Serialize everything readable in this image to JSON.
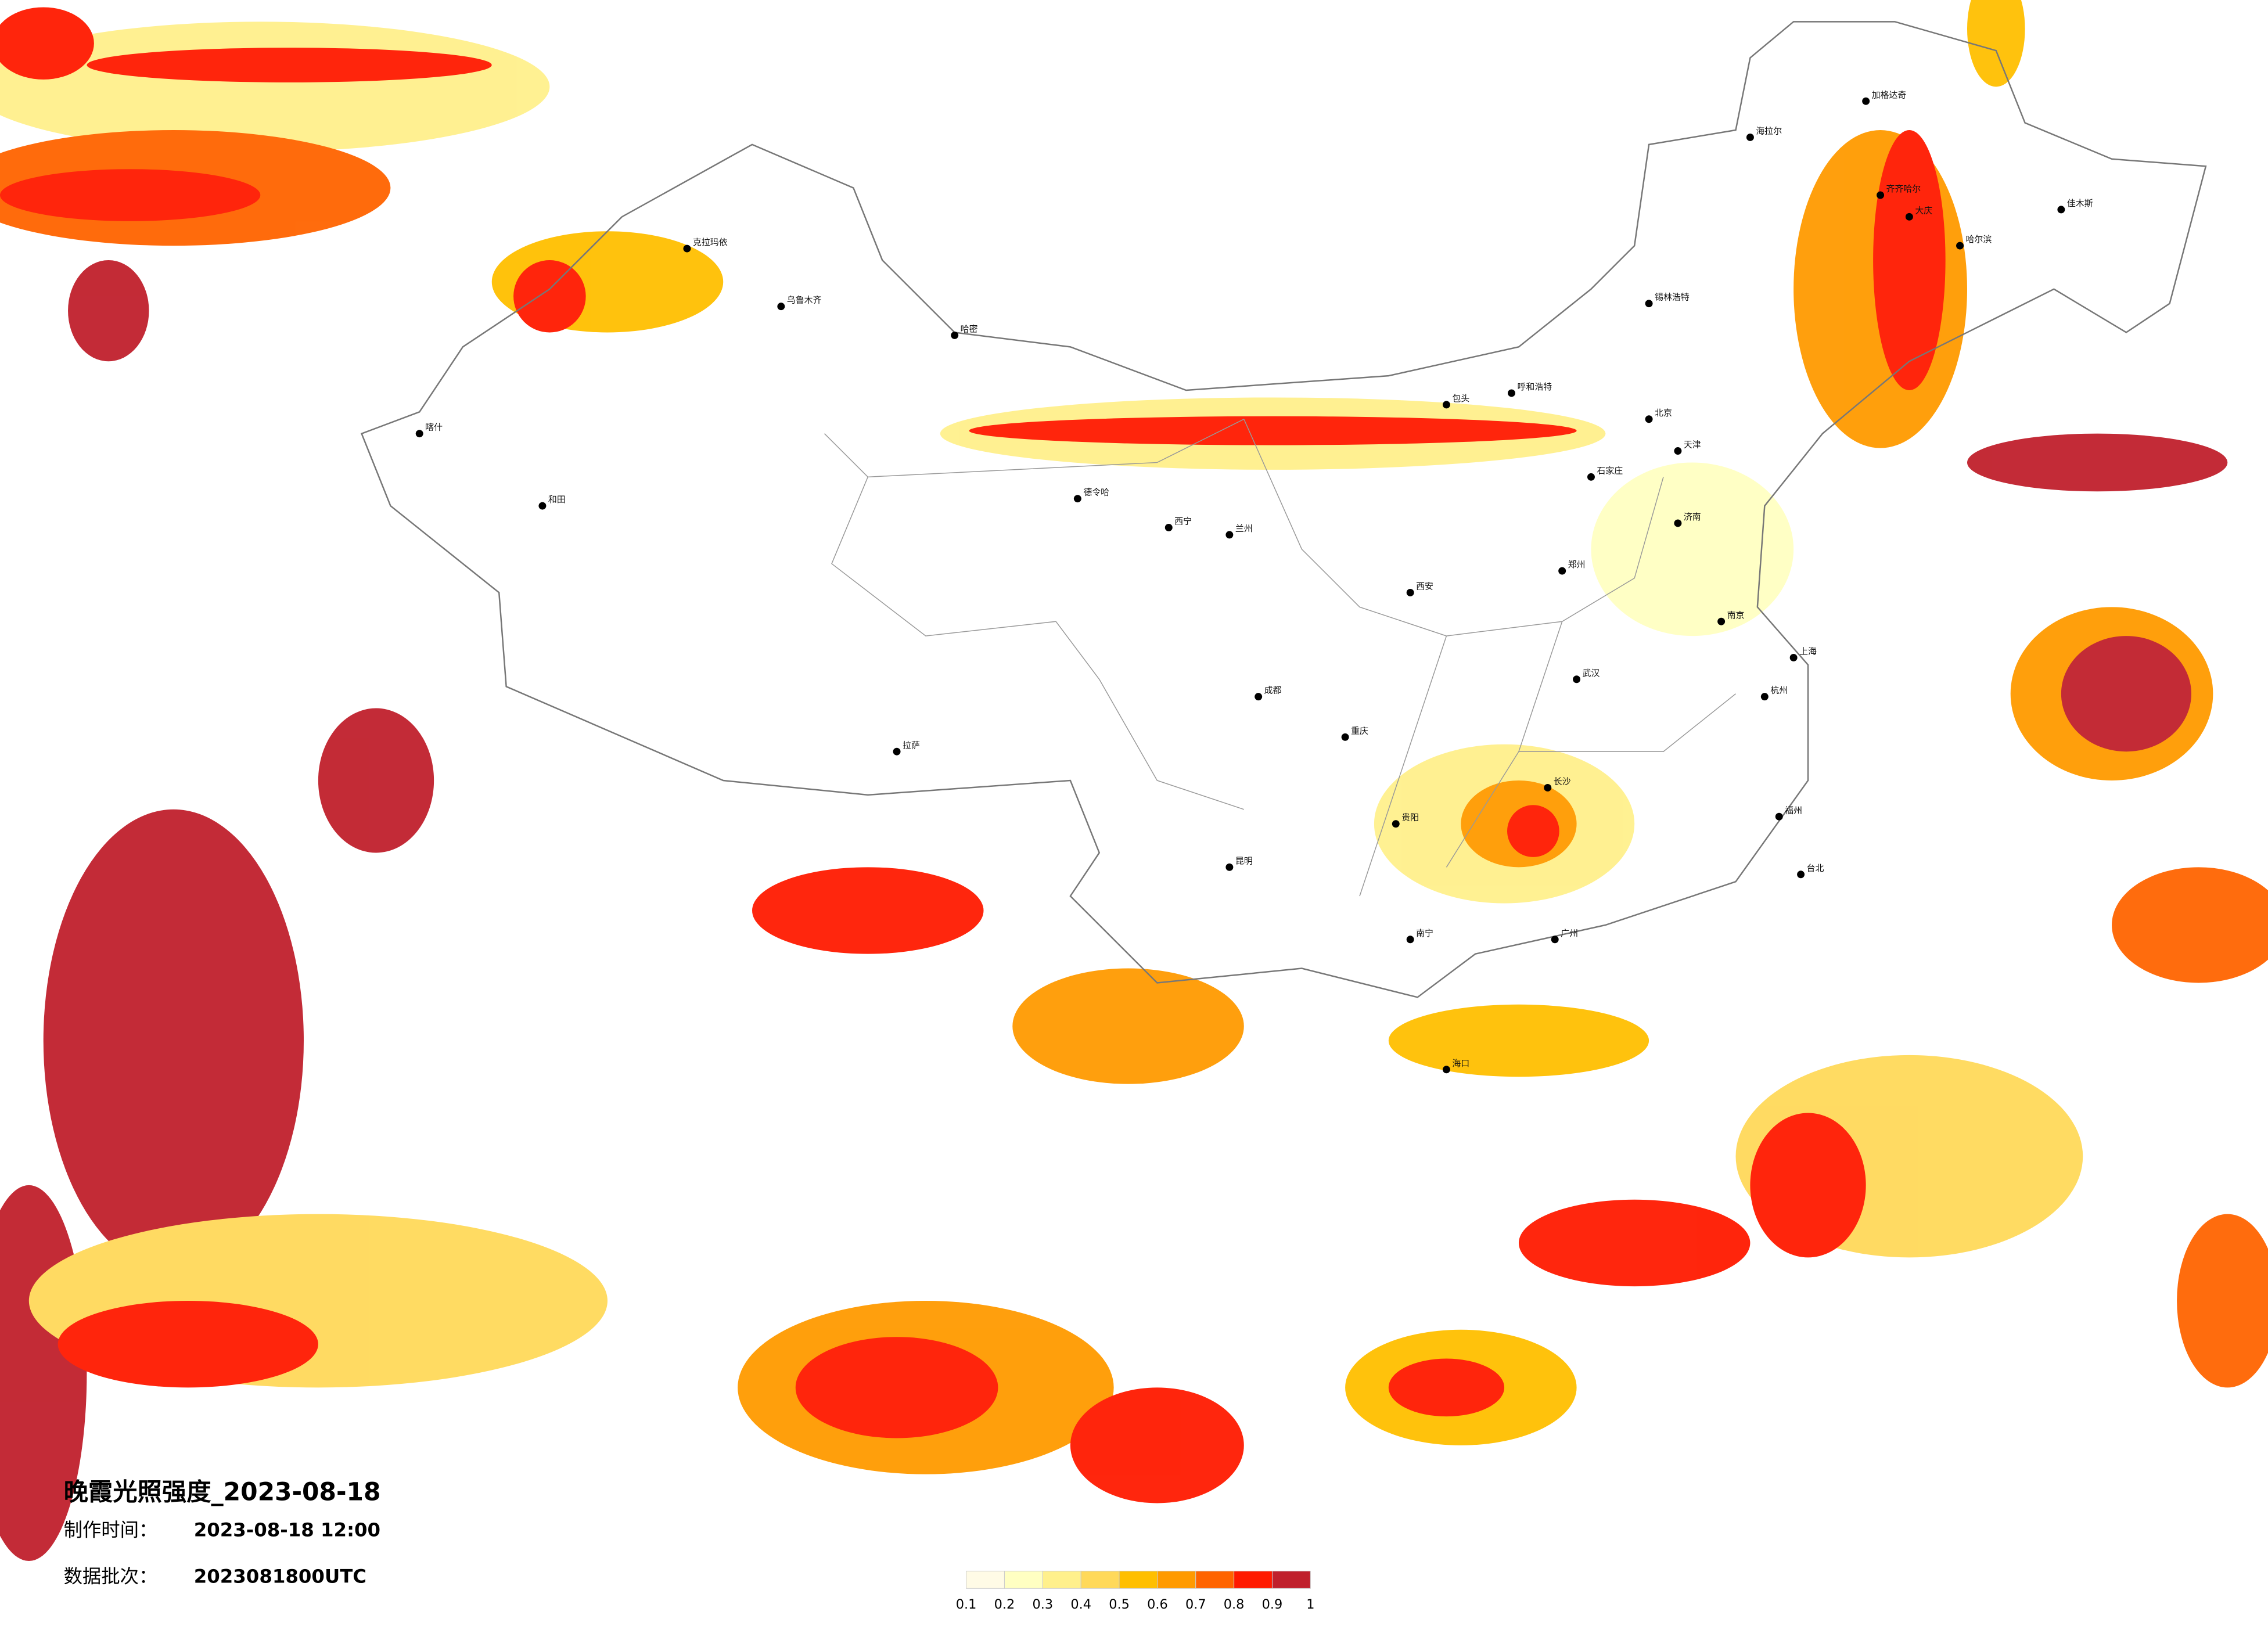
{
  "map": {
    "title": "晚霞光照强度_2023-08-18",
    "made_time_label": "制作时间：",
    "made_time": "2023-08-18 12:00",
    "batch_label": "数据批次：",
    "batch": "2023081800UTC",
    "legend": {
      "ticks": [
        0.1,
        0.2,
        0.3,
        0.4,
        0.5,
        0.6,
        0.7,
        0.8,
        0.9,
        1
      ],
      "colors": [
        "#fffbe6",
        "#ffffc2",
        "#fff08c",
        "#ffd95a",
        "#ffbf00",
        "#ff9a00",
        "#ff6400",
        "#ff1a00",
        "#c0202c"
      ]
    },
    "cities": [
      "海拉尔",
      "加格达奇",
      "齐齐哈尔",
      "大庆",
      "哈尔滨",
      "佳木斯",
      "锡林浩特",
      "呼和浩特",
      "包头",
      "北京",
      "天津",
      "石家庄",
      "济南",
      "郑州",
      "西安",
      "兰州",
      "西宁",
      "拉萨",
      "成都",
      "重庆",
      "贵阳",
      "昆明",
      "南宁",
      "广州",
      "长沙",
      "武汉",
      "南京",
      "上海",
      "杭州",
      "福州",
      "台北",
      "海口",
      "和田",
      "喀什",
      "哈密",
      "德令哈",
      "克拉玛依",
      "乌鲁木齐"
    ]
  }
}
